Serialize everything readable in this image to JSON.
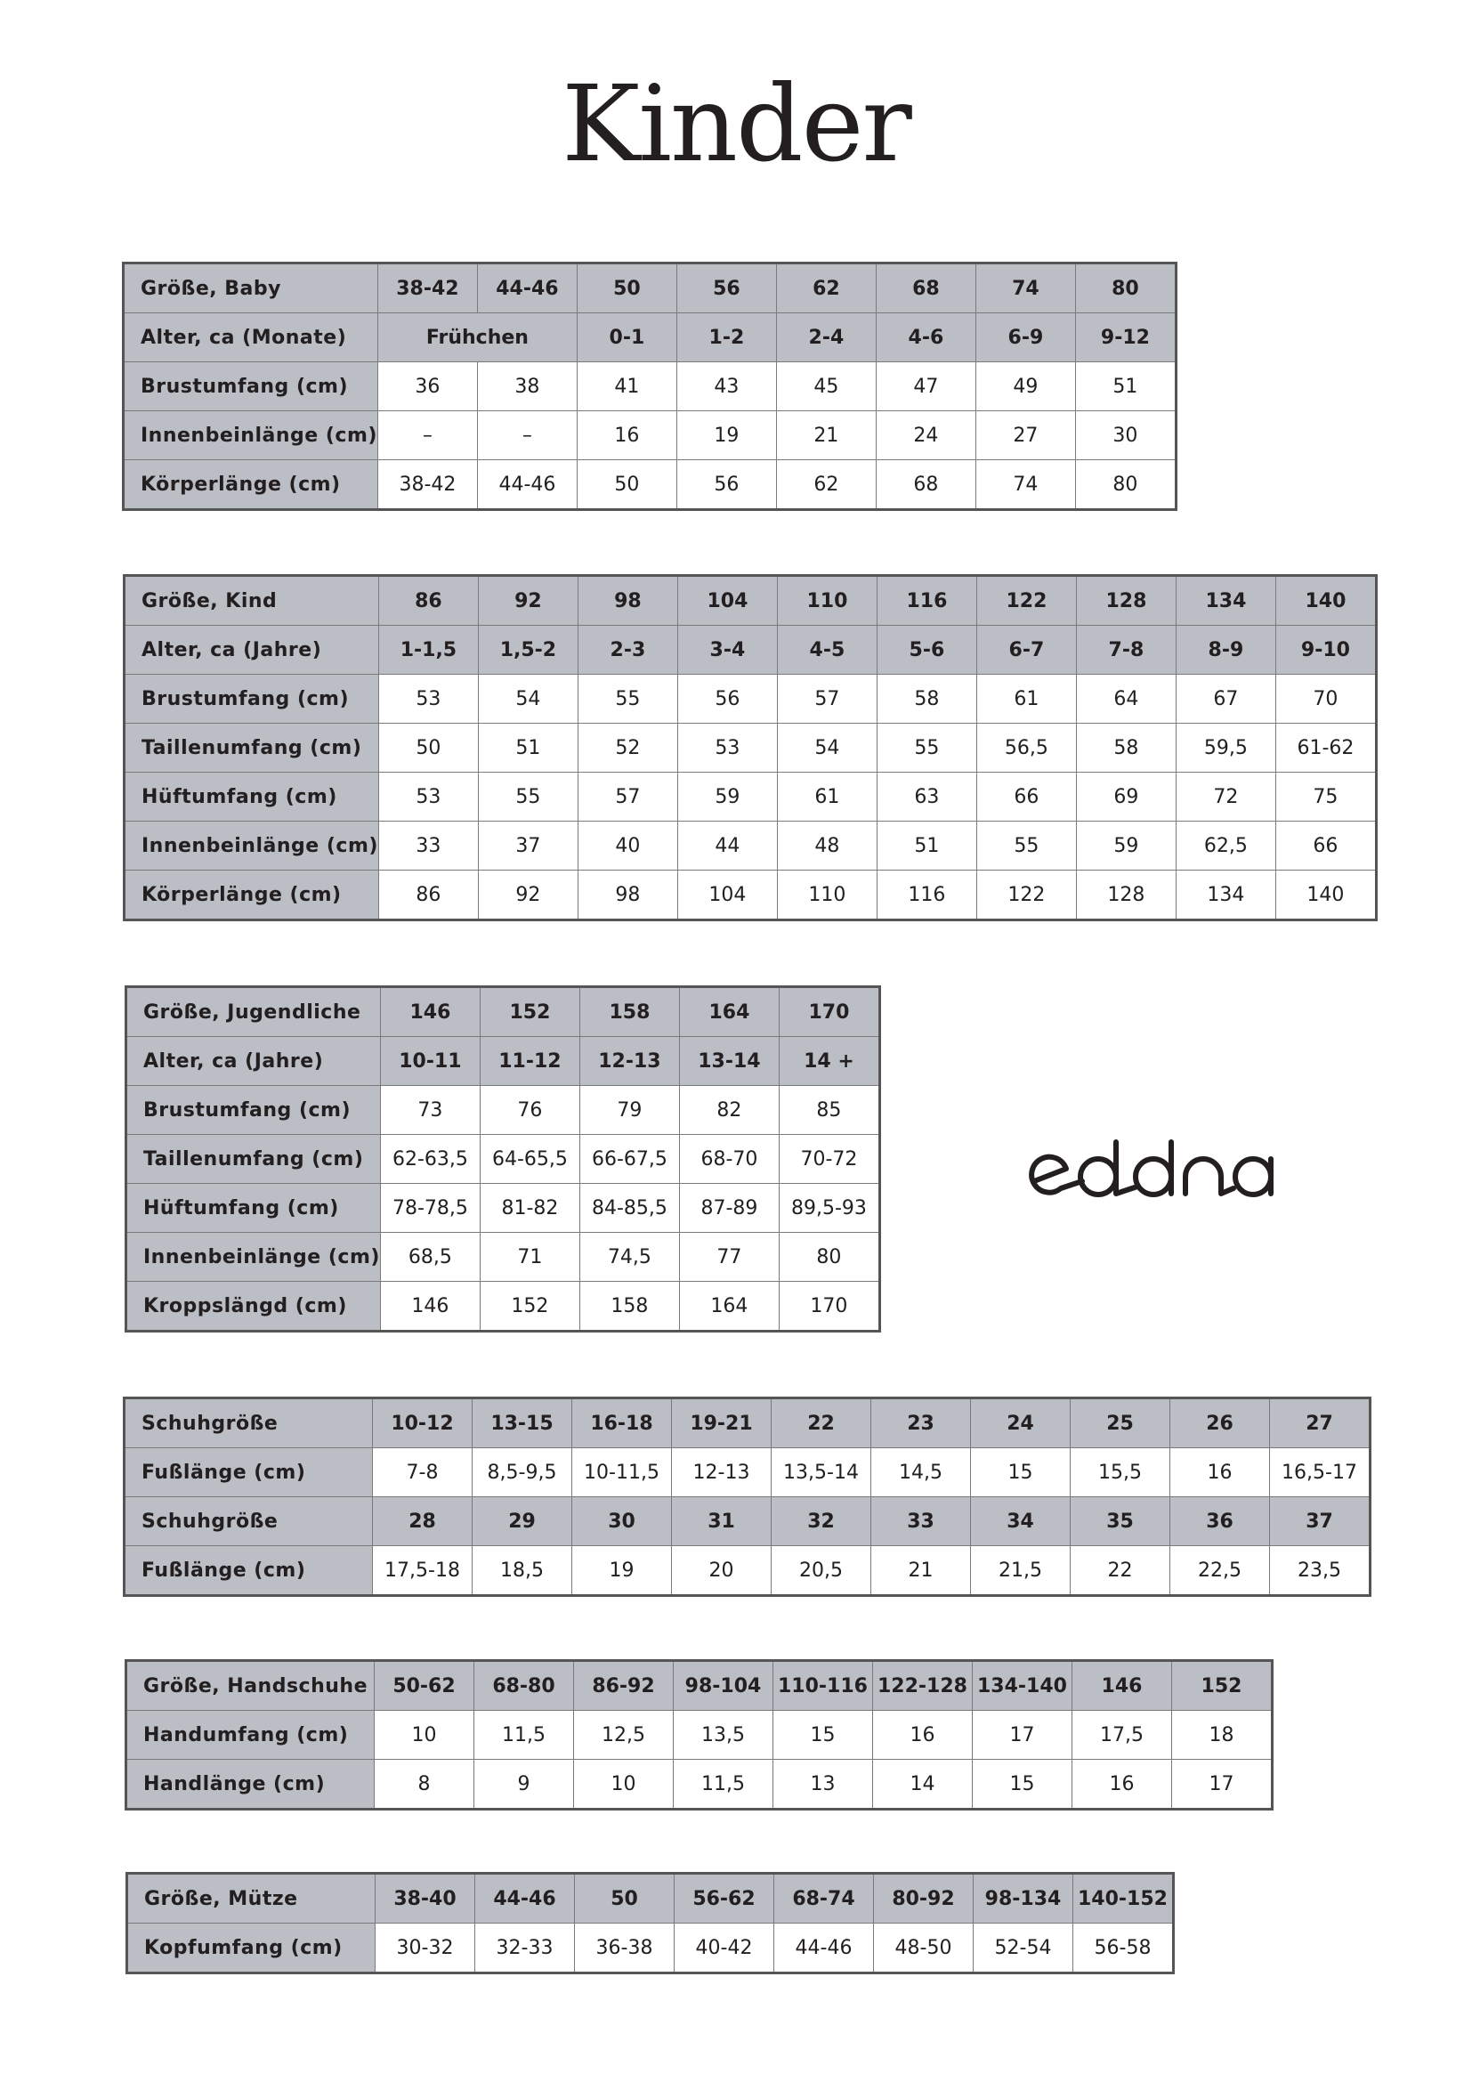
{
  "title": "Kinder",
  "logo": {
    "text": "eddna",
    "color": "#231f20"
  },
  "colors": {
    "header_bg": "#bbbec4",
    "border": "#555555",
    "text": "#231f20"
  },
  "tables": [
    {
      "id": "baby",
      "rows": [
        {
          "header": true,
          "label": "Größe, Baby",
          "cells": [
            "38-42",
            "44-46",
            "50",
            "56",
            "62",
            "68",
            "74",
            "80"
          ]
        },
        {
          "header": true,
          "label": "Alter, ca (Monate)",
          "cells": [
            {
              "text": "Frühchen",
              "span": 2
            },
            "0-1",
            "1-2",
            "2-4",
            "4-6",
            "6-9",
            "9-12"
          ]
        },
        {
          "header": false,
          "label": "Brustumfang (cm)",
          "cells": [
            "36",
            "38",
            "41",
            "43",
            "45",
            "47",
            "49",
            "51"
          ]
        },
        {
          "header": false,
          "label": "Innenbeinlänge (cm)",
          "cells": [
            "–",
            "–",
            "16",
            "19",
            "21",
            "24",
            "27",
            "30"
          ]
        },
        {
          "header": false,
          "label": "Körperlänge (cm)",
          "cells": [
            "38-42",
            "44-46",
            "50",
            "56",
            "62",
            "68",
            "74",
            "80"
          ]
        }
      ]
    },
    {
      "id": "kind",
      "rows": [
        {
          "header": true,
          "label": "Größe, Kind",
          "cells": [
            "86",
            "92",
            "98",
            "104",
            "110",
            "116",
            "122",
            "128",
            "134",
            "140"
          ]
        },
        {
          "header": true,
          "label": "Alter, ca (Jahre)",
          "cells": [
            "1-1,5",
            "1,5-2",
            "2-3",
            "3-4",
            "4-5",
            "5-6",
            "6-7",
            "7-8",
            "8-9",
            "9-10"
          ]
        },
        {
          "header": false,
          "label": "Brustumfang (cm)",
          "cells": [
            "53",
            "54",
            "55",
            "56",
            "57",
            "58",
            "61",
            "64",
            "67",
            "70"
          ]
        },
        {
          "header": false,
          "label": "Taillenumfang (cm)",
          "cells": [
            "50",
            "51",
            "52",
            "53",
            "54",
            "55",
            "56,5",
            "58",
            "59,5",
            "61-62"
          ]
        },
        {
          "header": false,
          "label": "Hüftumfang (cm)",
          "cells": [
            "53",
            "55",
            "57",
            "59",
            "61",
            "63",
            "66",
            "69",
            "72",
            "75"
          ]
        },
        {
          "header": false,
          "label": "Innenbeinlänge (cm)",
          "cells": [
            "33",
            "37",
            "40",
            "44",
            "48",
            "51",
            "55",
            "59",
            "62,5",
            "66"
          ]
        },
        {
          "header": false,
          "label": "Körperlänge (cm)",
          "cells": [
            "86",
            "92",
            "98",
            "104",
            "110",
            "116",
            "122",
            "128",
            "134",
            "140"
          ]
        }
      ]
    },
    {
      "id": "jugendliche",
      "rows": [
        {
          "header": true,
          "label": "Größe, Jugendliche",
          "cells": [
            "146",
            "152",
            "158",
            "164",
            "170"
          ]
        },
        {
          "header": true,
          "label": "Alter, ca (Jahre)",
          "cells": [
            "10-11",
            "11-12",
            "12-13",
            "13-14",
            "14 +"
          ]
        },
        {
          "header": false,
          "label": "Brustumfang (cm)",
          "cells": [
            "73",
            "76",
            "79",
            "82",
            "85"
          ]
        },
        {
          "header": false,
          "label": "Taillenumfang (cm)",
          "cells": [
            "62-63,5",
            "64-65,5",
            "66-67,5",
            "68-70",
            "70-72"
          ]
        },
        {
          "header": false,
          "label": "Hüftumfang (cm)",
          "cells": [
            "78-78,5",
            "81-82",
            "84-85,5",
            "87-89",
            "89,5-93"
          ]
        },
        {
          "header": false,
          "label": "Innenbeinlänge (cm)",
          "cells": [
            "68,5",
            "71",
            "74,5",
            "77",
            "80"
          ]
        },
        {
          "header": false,
          "label": "Kroppslängd (cm)",
          "cells": [
            "146",
            "152",
            "158",
            "164",
            "170"
          ]
        }
      ]
    },
    {
      "id": "schuhe",
      "rows": [
        {
          "header": true,
          "label": "Schuhgröße",
          "cells": [
            "10-12",
            "13-15",
            "16-18",
            "19-21",
            "22",
            "23",
            "24",
            "25",
            "26",
            "27"
          ]
        },
        {
          "header": false,
          "label": "Fußlänge (cm)",
          "cells": [
            "7-8",
            "8,5-9,5",
            "10-11,5",
            "12-13",
            "13,5-14",
            "14,5",
            "15",
            "15,5",
            "16",
            "16,5-17"
          ]
        },
        {
          "header": true,
          "label": "Schuhgröße",
          "cells": [
            "28",
            "29",
            "30",
            "31",
            "32",
            "33",
            "34",
            "35",
            "36",
            "37"
          ]
        },
        {
          "header": false,
          "label": "Fußlänge (cm)",
          "cells": [
            "17,5-18",
            "18,5",
            "19",
            "20",
            "20,5",
            "21",
            "21,5",
            "22",
            "22,5",
            "23,5"
          ]
        }
      ]
    },
    {
      "id": "handschuhe",
      "rows": [
        {
          "header": true,
          "label": "Größe, Handschuhe",
          "cells": [
            "50-62",
            "68-80",
            "86-92",
            "98-104",
            "110-116",
            "122-128",
            "134-140",
            "146",
            "152"
          ]
        },
        {
          "header": false,
          "label": "Handumfang (cm)",
          "cells": [
            "10",
            "11,5",
            "12,5",
            "13,5",
            "15",
            "16",
            "17",
            "17,5",
            "18"
          ]
        },
        {
          "header": false,
          "label": "Handlänge (cm)",
          "cells": [
            "8",
            "9",
            "10",
            "11,5",
            "13",
            "14",
            "15",
            "16",
            "17"
          ]
        }
      ]
    },
    {
      "id": "muetze",
      "rows": [
        {
          "header": true,
          "label": "Größe, Mütze",
          "cells": [
            "38-40",
            "44-46",
            "50",
            "56-62",
            "68-74",
            "80-92",
            "98-134",
            "140-152"
          ]
        },
        {
          "header": false,
          "label": "Kopfumfang (cm)",
          "cells": [
            "30-32",
            "32-33",
            "36-38",
            "40-42",
            "44-46",
            "48-50",
            "52-54",
            "56-58"
          ]
        }
      ]
    }
  ]
}
